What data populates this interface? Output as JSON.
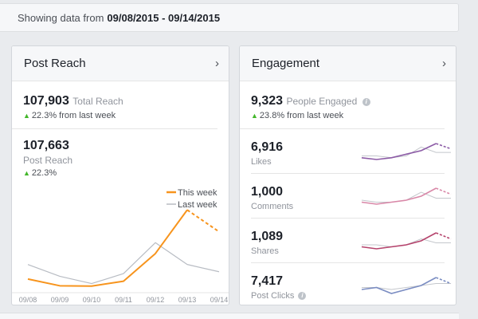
{
  "banner": {
    "prefix": "Showing data from",
    "range": "09/08/2015 - 09/14/2015"
  },
  "reach": {
    "title": "Post Reach",
    "total_value": "107,903",
    "total_label": "Total Reach",
    "total_delta": "22.3% from last week",
    "post_value": "107,663",
    "post_label": "Post Reach",
    "post_delta": "22.3%",
    "legend_this": "This week",
    "legend_last": "Last week"
  },
  "engagement": {
    "title": "Engagement",
    "engaged_value": "9,323",
    "engaged_label": "People Engaged",
    "engaged_delta": "23.8% from last week",
    "metrics": [
      {
        "value": "6,916",
        "label": "Likes",
        "color": "#8c5ba6"
      },
      {
        "value": "1,000",
        "label": "Comments",
        "color": "#d988a8"
      },
      {
        "value": "1,089",
        "label": "Shares",
        "color": "#b5436c"
      },
      {
        "value": "7,417",
        "label": "Post Clicks",
        "color": "#7b8dc2"
      }
    ]
  },
  "icons": {
    "chevron": "chevron-right-icon",
    "info": "info-icon",
    "delta": "triangle-up-icon"
  },
  "colors": {
    "this_week": "#f7941d",
    "last_week": "#b8bcc3",
    "positive": "#42b72a"
  },
  "chart_data": {
    "type": "line",
    "categories": [
      "09/08",
      "09/09",
      "09/10",
      "09/11",
      "09/12",
      "09/13",
      "09/14"
    ],
    "series": [
      {
        "name": "This week",
        "values": [
          4000,
          300,
          100,
          2800,
          18000,
          42000,
          30000
        ],
        "last_dashed": true
      },
      {
        "name": "Last week",
        "values": [
          12000,
          5500,
          1500,
          7000,
          24000,
          12000,
          8000
        ]
      }
    ],
    "ylim": [
      0,
      50000
    ],
    "legend": "top-right",
    "grid": false
  },
  "sparklines": [
    {
      "this": [
        5,
        4,
        5,
        7,
        9,
        13,
        10
      ],
      "last": [
        6,
        6,
        5,
        6,
        11,
        8,
        8
      ]
    },
    {
      "this": [
        5,
        4,
        5,
        6,
        8,
        12,
        9
      ],
      "last": [
        6,
        5,
        5,
        6,
        10,
        7,
        7
      ]
    },
    {
      "this": [
        5,
        4,
        5,
        6,
        8,
        12,
        9
      ],
      "last": [
        6,
        6,
        5,
        6,
        9,
        7,
        7
      ]
    },
    {
      "this": [
        5,
        6,
        3,
        5,
        7,
        11,
        8
      ],
      "last": [
        6,
        6,
        5,
        6,
        7,
        8,
        8
      ]
    }
  ]
}
